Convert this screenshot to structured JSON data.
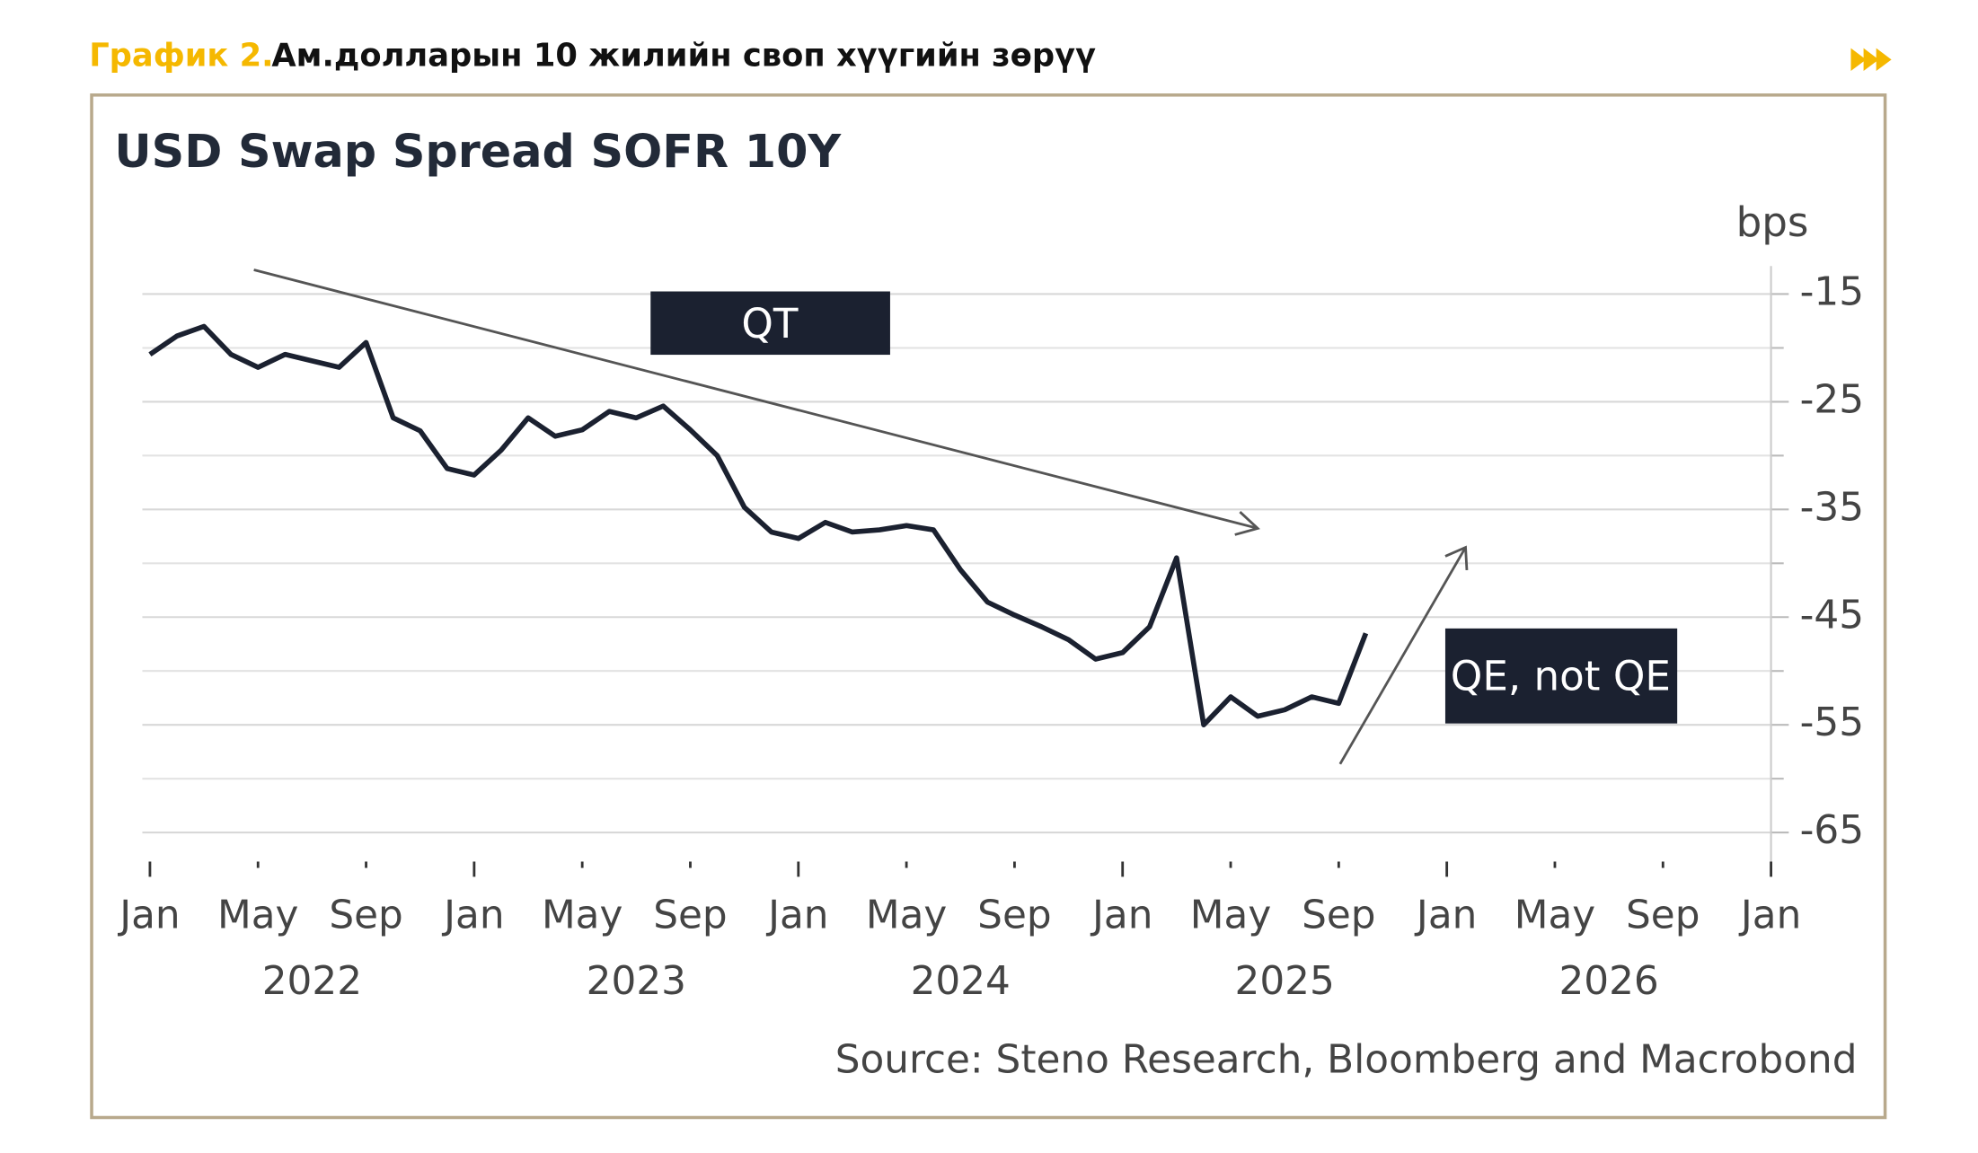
{
  "header": {
    "label": "График 2.",
    "title": "Ам.долларын 10 жилийн своп хүүгийн зөрүү"
  },
  "chart_data": {
    "type": "line",
    "title": "USD Swap Spread SOFR 10Y",
    "y_axis_label": "bps",
    "source": "Source: Steno Research, Bloomberg and Macrobond",
    "annotations": [
      "QT",
      "QE, not QE"
    ],
    "x": [
      "2022-01",
      "2022-02",
      "2022-03",
      "2022-04",
      "2022-05",
      "2022-06",
      "2022-07",
      "2022-08",
      "2022-09",
      "2022-10",
      "2022-11",
      "2022-12",
      "2023-01",
      "2023-02",
      "2023-03",
      "2023-04",
      "2023-05",
      "2023-06",
      "2023-07",
      "2023-08",
      "2023-09",
      "2023-10",
      "2023-11",
      "2023-12",
      "2024-01",
      "2024-02",
      "2024-03",
      "2024-04",
      "2024-05",
      "2024-06",
      "2024-07",
      "2024-08",
      "2024-09",
      "2024-10",
      "2024-11",
      "2024-12",
      "2025-01",
      "2025-02",
      "2025-03",
      "2025-04",
      "2025-05",
      "2025-06",
      "2025-07",
      "2025-08",
      "2025-09",
      "2025-10"
    ],
    "series": [
      {
        "name": "USD Swap Spread SOFR 10Y",
        "color": "#1b2130",
        "values": [
          -20.6,
          -18.9,
          -18,
          -20.6,
          -21.8,
          -20.6,
          -21.2,
          -21.8,
          -19.5,
          -26.5,
          -27.7,
          -31.2,
          -31.8,
          -29.5,
          -26.5,
          -28.2,
          -27.6,
          -25.9,
          -26.5,
          -25.4,
          -27.6,
          -30,
          -34.8,
          -37.1,
          -37.7,
          -36.2,
          -37.1,
          -36.9,
          -36.5,
          -36.9,
          -40.6,
          -43.6,
          -44.8,
          -45.9,
          -47.1,
          -48.9,
          -48.3,
          -45.9,
          -39.5,
          -55,
          -52.4,
          -54.2,
          -53.6,
          -52.4,
          -53,
          -46.5
        ]
      }
    ],
    "xlim": [
      "2022-01",
      "2027-01"
    ],
    "xticks": [
      {
        "value": "2022-01",
        "label": "Jan"
      },
      {
        "value": "2022-05",
        "label": "May"
      },
      {
        "value": "2022-09",
        "label": "Sep"
      },
      {
        "value": "2023-01",
        "label": "Jan"
      },
      {
        "value": "2023-05",
        "label": "May"
      },
      {
        "value": "2023-09",
        "label": "Sep"
      },
      {
        "value": "2024-01",
        "label": "Jan"
      },
      {
        "value": "2024-05",
        "label": "May"
      },
      {
        "value": "2024-09",
        "label": "Sep"
      },
      {
        "value": "2025-01",
        "label": "Jan"
      },
      {
        "value": "2025-05",
        "label": "May"
      },
      {
        "value": "2025-09",
        "label": "Sep"
      },
      {
        "value": "2026-01",
        "label": "Jan"
      },
      {
        "value": "2026-05",
        "label": "May"
      },
      {
        "value": "2026-09",
        "label": "Sep"
      },
      {
        "value": "2027-01",
        "label": "Jan"
      }
    ],
    "year_labels": [
      {
        "value": "2022-07",
        "label": "2022"
      },
      {
        "value": "2023-07",
        "label": "2023"
      },
      {
        "value": "2024-07",
        "label": "2024"
      },
      {
        "value": "2025-07",
        "label": "2025"
      },
      {
        "value": "2026-07",
        "label": "2026"
      }
    ],
    "ylim": [
      -67.7,
      -12.4
    ],
    "yticks": [
      -15,
      -25,
      -35,
      -45,
      -55,
      -65
    ],
    "yminorticks": [
      -20,
      -30,
      -40,
      -50,
      -60
    ],
    "grid": true
  }
}
